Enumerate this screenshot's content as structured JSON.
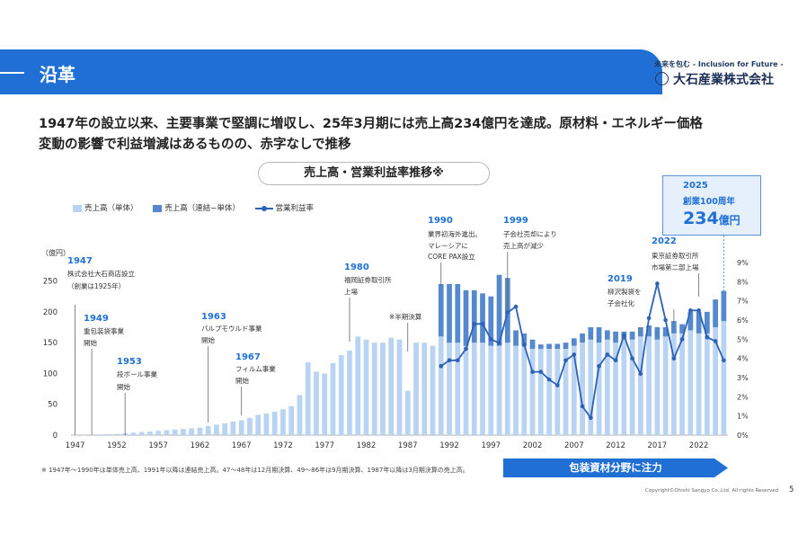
{
  "header": {
    "title": "沿革"
  },
  "brand": {
    "tagline": "未来を包む - Inclusion for Future -",
    "name": "大石産業株式会社",
    "logo_icon": "company-emblem-icon"
  },
  "headline": {
    "line1": "1947年の設立以来、主要事業で堅調に増収し、25年3月期には売上高234億円を達成。原材料・エネルギー価格",
    "line2": "変動の影響で利益増減はあるものの、赤字なしで推移"
  },
  "chart_title": "売上高・営業利益率推移※",
  "legend": {
    "standalone": "売上高（単体）",
    "consolidated": "売上高（連結−単体）",
    "margin": "営業利益率"
  },
  "colors": {
    "accent": "#1f6fd4",
    "standalone": "#b8d4f2",
    "consolidated": "#5588cc",
    "line": "#2e62b6"
  },
  "callout": {
    "year": "2025",
    "sub": "創業100周年",
    "value": "234",
    "unit": "億円"
  },
  "banner": "包装資材分野に注力",
  "footnote": "※ 1947年～1990年は単体売上高、1991年以降は連結売上高。47～48年は12月期決算、49～86年は9月期決算、1987年以降は3月期決算の売上高。",
  "copyright": "Copyright©Ohishi Sangyo Co.,Ltd. All rights Reserved",
  "page_number": "5",
  "annotations": [
    {
      "year": "1947",
      "lines": [
        "株式会社大石商店設立",
        "（創業は1925年）"
      ],
      "x": 1947
    },
    {
      "year": "1949",
      "lines": [
        "重包装袋事業",
        "開始"
      ],
      "x": 1949
    },
    {
      "year": "1953",
      "lines": [
        "段ボール事業",
        "開始"
      ],
      "x": 1953
    },
    {
      "year": "1963",
      "lines": [
        "パルプモウルド事業",
        "開始"
      ],
      "x": 1963
    },
    {
      "year": "1967",
      "lines": [
        "フィルム事業",
        "開始"
      ],
      "x": 1967
    },
    {
      "year": "1980",
      "lines": [
        "福岡証券取引所",
        "上場"
      ],
      "x": 1980
    },
    {
      "year": "",
      "lines": [
        "※半期決算"
      ],
      "x": 1987
    },
    {
      "year": "1990",
      "lines": [
        "業界初海外進出。",
        "マレーシアに",
        "CORE PAX設立"
      ],
      "x": 1991
    },
    {
      "year": "1999",
      "lines": [
        "子会社売却により",
        "売上高が減少"
      ],
      "x": 1999
    },
    {
      "year": "2019",
      "lines": [
        "柳沢製袋を",
        "子会社化"
      ],
      "x": 2019
    },
    {
      "year": "2022",
      "lines": [
        "東京証券取引所",
        "市場第二部上場"
      ],
      "x": 2022
    }
  ],
  "chart_data": {
    "type": "bar",
    "yunit": "（億円）",
    "ylim": [
      0,
      280
    ],
    "y2lim": [
      0,
      9
    ],
    "y_ticks": [
      0,
      50,
      100,
      150,
      200,
      250
    ],
    "y2_ticks": [
      "0%",
      "1%",
      "2%",
      "3%",
      "4%",
      "5%",
      "6%",
      "7%",
      "8%",
      "9%"
    ],
    "x_tick_labels": [
      "1947",
      "1952",
      "1957",
      "1962",
      "1967",
      "1972",
      "1977",
      "1982",
      "1987",
      "1992",
      "1997",
      "2002",
      "2007",
      "2012",
      "2017",
      "2022"
    ],
    "x_ticks": [
      1947,
      1952,
      1957,
      1962,
      1967,
      1972,
      1977,
      1982,
      1987,
      1992,
      1997,
      2002,
      2007,
      2012,
      2017,
      2022
    ],
    "x": [
      1947,
      1948,
      1949,
      1950,
      1951,
      1952,
      1953,
      1954,
      1955,
      1956,
      1957,
      1958,
      1959,
      1960,
      1961,
      1962,
      1963,
      1964,
      1965,
      1966,
      1967,
      1968,
      1969,
      1970,
      1971,
      1972,
      1973,
      1974,
      1975,
      1976,
      1977,
      1978,
      1979,
      1980,
      1981,
      1982,
      1983,
      1984,
      1985,
      1986,
      1987,
      1988,
      1989,
      1990,
      1991,
      1992,
      1993,
      1994,
      1995,
      1996,
      1997,
      1998,
      1999,
      2000,
      2001,
      2002,
      2003,
      2004,
      2005,
      2006,
      2007,
      2008,
      2009,
      2010,
      2011,
      2012,
      2013,
      2014,
      2015,
      2016,
      2017,
      2018,
      2019,
      2020,
      2021,
      2022,
      2023,
      2024,
      2025
    ],
    "series": [
      {
        "name": "売上高（単体）",
        "values": [
          0.5,
          0.5,
          0.8,
          1,
          1.5,
          2,
          3,
          4,
          5,
          6,
          7,
          8,
          9,
          10,
          11,
          12,
          15,
          17,
          19,
          22,
          24,
          28,
          33,
          35,
          38,
          42,
          47,
          65,
          118,
          103,
          100,
          117,
          130,
          137,
          160,
          155,
          150,
          150,
          158,
          155,
          72,
          150,
          150,
          145,
          160,
          150,
          150,
          145,
          150,
          150,
          145,
          145,
          150,
          145,
          145,
          140,
          140,
          140,
          140,
          140,
          145,
          150,
          155,
          150,
          155,
          150,
          155,
          155,
          160,
          160,
          155,
          160,
          165,
          165,
          170,
          165,
          165,
          175,
          185
        ]
      },
      {
        "name": "売上高（連結−単体）",
        "values": [
          0,
          0,
          0,
          0,
          0,
          0,
          0,
          0,
          0,
          0,
          0,
          0,
          0,
          0,
          0,
          0,
          0,
          0,
          0,
          0,
          0,
          0,
          0,
          0,
          0,
          0,
          0,
          0,
          0,
          0,
          0,
          0,
          0,
          0,
          0,
          0,
          0,
          0,
          0,
          0,
          0,
          0,
          0,
          0,
          85,
          95,
          95,
          90,
          85,
          80,
          80,
          115,
          105,
          25,
          20,
          15,
          7,
          8,
          8,
          10,
          12,
          15,
          20,
          25,
          15,
          18,
          13,
          13,
          15,
          18,
          20,
          15,
          20,
          15,
          30,
          35,
          35,
          45,
          49
        ]
      },
      {
        "name": "営業利益率",
        "x": [
          1991,
          1992,
          1993,
          1994,
          1995,
          1996,
          1997,
          1998,
          1999,
          2000,
          2001,
          2002,
          2003,
          2004,
          2005,
          2006,
          2007,
          2008,
          2009,
          2010,
          2011,
          2012,
          2013,
          2014,
          2015,
          2016,
          2017,
          2018,
          2019,
          2020,
          2021,
          2022,
          2023,
          2024,
          2025
        ],
        "values": [
          3.6,
          3.9,
          3.9,
          4.5,
          5.8,
          5.8,
          5.0,
          4.8,
          6.4,
          6.7,
          4.7,
          3.3,
          3.3,
          2.9,
          2.6,
          3.9,
          4.2,
          1.5,
          0.9,
          3.6,
          4.2,
          3.9,
          5.2,
          4.0,
          3.2,
          6.1,
          7.9,
          6.0,
          4.0,
          5.0,
          6.5,
          6.5,
          5.1,
          4.9,
          3.9
        ]
      }
    ]
  }
}
